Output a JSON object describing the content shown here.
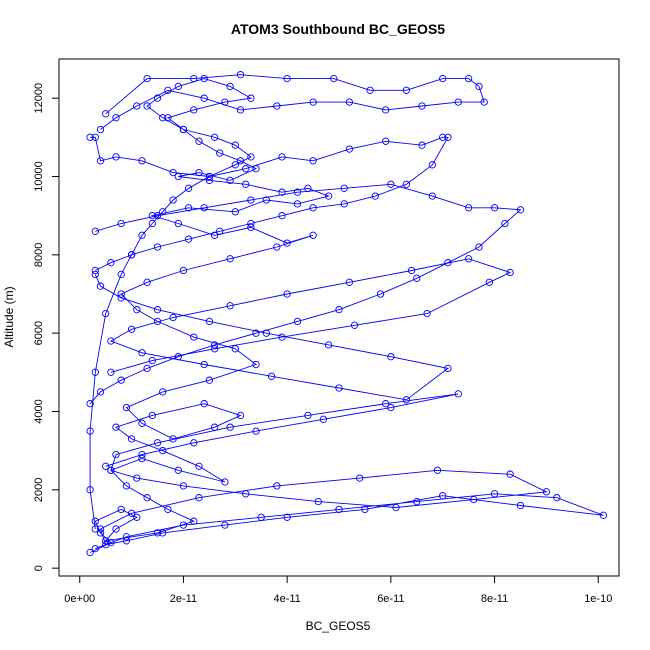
{
  "chart_data": {
    "type": "line",
    "title": "ATOM3 Southbound BC_GEOS5",
    "xlabel": "BC_GEOS5",
    "ylabel": "Altitude (m)",
    "xlim": [
      -4e-12,
      1.04e-10
    ],
    "ylim": [
      -200,
      13000
    ],
    "xticks": [
      0,
      2e-11,
      4e-11,
      6e-11,
      8e-11,
      1e-10
    ],
    "xtick_labels": [
      "0e+00",
      "2e-11",
      "4e-11",
      "6e-11",
      "8e-11",
      "1e-10"
    ],
    "yticks": [
      0,
      2000,
      4000,
      6000,
      8000,
      10000,
      12000
    ],
    "ytick_labels": [
      "0",
      "2000",
      "4000",
      "6000",
      "8000",
      "10000",
      "12000"
    ],
    "marker": "open-circle",
    "color": "#0000ff",
    "grid": false,
    "series": [
      {
        "x": [
          2e-12,
          6e-12,
          4e-12,
          3e-12,
          8e-12,
          1.1e-11,
          7e-12,
          5e-12,
          1.5e-11,
          2.2e-11,
          1.7e-11,
          1.3e-11,
          9e-12,
          6e-12,
          1.2e-11,
          1.9e-11,
          2.8e-11,
          2.3e-11,
          1.6e-11,
          1e-11,
          7e-12,
          1.4e-11,
          2.4e-11,
          3.1e-11,
          2.6e-11,
          1.8e-11,
          1.2e-11,
          9e-12,
          1.6e-11,
          2.5e-11,
          3.4e-11,
          3e-11,
          2.2e-11,
          1.5e-11,
          1.1e-11,
          8e-12,
          1.3e-11,
          2e-11,
          2.9e-11,
          3.8e-11,
          4.5e-11,
          4e-11,
          3.3e-11,
          2.6e-11,
          1.9e-11,
          1.4e-11,
          2.1e-11,
          3e-11,
          3.6e-11,
          4.2e-11,
          4.8e-11,
          4.4e-11,
          3.9e-11,
          3.2e-11,
          2.5e-11,
          1.9e-11,
          2.3e-11,
          2.9e-11,
          3.4e-11,
          3.1e-11,
          2.7e-11,
          2.3e-11,
          2e-11,
          1.7e-11,
          2.2e-11,
          2.8e-11,
          3.3e-11,
          2.9e-11,
          2.4e-11,
          1.9e-11,
          1.5e-11,
          1.3e-11,
          1.6e-11,
          2e-11,
          2.6e-11,
          3e-11,
          3.3e-11,
          3e-11,
          2.5e-11,
          2.1e-11,
          1.8e-11,
          1.6e-11,
          1.4e-11,
          1.2e-11,
          1e-11,
          8e-12,
          5e-12,
          3e-12,
          2e-12,
          2e-12,
          3e-12
        ],
        "y": [
          400,
          650,
          900,
          1200,
          1500,
          1300,
          1000,
          700,
          900,
          1200,
          1500,
          1800,
          2100,
          2500,
          2800,
          2500,
          2200,
          2600,
          3000,
          3300,
          3600,
          3900,
          4200,
          3900,
          3600,
          3300,
          3700,
          4100,
          4500,
          4800,
          5200,
          5600,
          5900,
          6300,
          6600,
          7000,
          7300,
          7600,
          7900,
          8200,
          8500,
          8300,
          8700,
          8500,
          8800,
          9000,
          9200,
          9100,
          9400,
          9300,
          9500,
          9700,
          9600,
          9800,
          9900,
          10000,
          10100,
          9900,
          10200,
          10400,
          10600,
          10900,
          11200,
          11500,
          11700,
          11900,
          12000,
          12300,
          12500,
          12300,
          12000,
          11800,
          11500,
          11200,
          11000,
          10800,
          10500,
          10300,
          10000,
          9700,
          9400,
          9100,
          8800,
          8500,
          8000,
          7500,
          6500,
          5000,
          3500,
          2000,
          1000
        ]
      },
      {
        "x": [
          3e-12,
          9e-12,
          2e-11,
          3.5e-11,
          5e-11,
          6.5e-11,
          8e-11,
          9.2e-11,
          1.01e-10,
          8.5e-11,
          7e-11,
          5.5e-11,
          4e-11,
          2.8e-11,
          1.6e-11,
          9e-12,
          5e-12,
          4e-12,
          1e-11,
          2.3e-11,
          3.8e-11,
          5.4e-11,
          6.9e-11,
          8.3e-11,
          9e-11,
          7.6e-11,
          6.1e-11,
          4.6e-11,
          3.2e-11,
          2e-11,
          1.1e-11,
          6e-12,
          7e-12,
          1.5e-11,
          2.9e-11,
          4.4e-11,
          5.9e-11,
          7.3e-11,
          6e-11,
          4.7e-11,
          3.4e-11,
          2.2e-11,
          1.2e-11,
          5e-12
        ],
        "y": [
          500,
          800,
          1100,
          1300,
          1500,
          1700,
          1900,
          1800,
          1350,
          1600,
          1850,
          1500,
          1300,
          1100,
          900,
          700,
          600,
          1000,
          1400,
          1800,
          2100,
          2300,
          2500,
          2400,
          1950,
          1750,
          1550,
          1700,
          1900,
          2100,
          2300,
          2500,
          2900,
          3200,
          3600,
          3900,
          4200,
          4450,
          4100,
          3800,
          3500,
          3200,
          2900,
          2600
        ]
      },
      {
        "x": [
          6e-12,
          1.4e-11,
          2.6e-11,
          3.9e-11,
          5.3e-11,
          6.7e-11,
          7.9e-11,
          8.3e-11,
          7.5e-11,
          6.4e-11,
          5.2e-11,
          4e-11,
          2.9e-11,
          1.8e-11,
          1e-11,
          6e-12,
          1.2e-11,
          2.4e-11,
          3.7e-11,
          5e-11,
          6.3e-11,
          7.1e-11,
          6e-11,
          4.8e-11,
          3.6e-11,
          2.5e-11,
          1.5e-11,
          8e-12,
          4e-12,
          3e-12
        ],
        "y": [
          5000,
          5300,
          5600,
          5900,
          6200,
          6500,
          7300,
          7550,
          7900,
          7600,
          7300,
          7000,
          6700,
          6400,
          6100,
          5800,
          5500,
          5200,
          4900,
          4600,
          4300,
          5100,
          5400,
          5700,
          6000,
          6300,
          6600,
          6900,
          7200,
          7500
        ]
      },
      {
        "x": [
          3e-12,
          8e-12,
          1.5e-11,
          2.4e-11,
          3.3e-11,
          4.2e-11,
          5.1e-11,
          6e-11,
          6.8e-11,
          7.5e-11,
          8e-11,
          8.5e-11,
          8.2e-11,
          7.7e-11,
          7.1e-11,
          6.5e-11,
          5.8e-11,
          5e-11,
          4.2e-11,
          3.4e-11,
          2.6e-11,
          1.9e-11,
          1.3e-11,
          8e-12,
          4e-12,
          2e-12
        ],
        "y": [
          8600,
          8800,
          9000,
          9200,
          9400,
          9600,
          9700,
          9800,
          9500,
          9200,
          9200,
          9150,
          8800,
          8200,
          7800,
          7400,
          7000,
          6600,
          6300,
          6000,
          5700,
          5400,
          5100,
          4800,
          4500,
          4200
        ]
      },
      {
        "x": [
          2e-12,
          3e-12,
          4e-12,
          7e-12,
          1.2e-11,
          1.8e-11,
          2.5e-11,
          3.2e-11,
          3.9e-11,
          4.5e-11,
          5.2e-11,
          5.9e-11,
          6.6e-11,
          7e-11,
          7.1e-11,
          6.8e-11,
          6.3e-11,
          5.7e-11,
          5.1e-11,
          4.5e-11,
          3.9e-11,
          3.3e-11,
          2.7e-11,
          2.1e-11,
          1.5e-11,
          1e-11,
          6e-12,
          3e-12
        ],
        "y": [
          11000,
          11000,
          10400,
          10500,
          10400,
          10100,
          10000,
          10200,
          10500,
          10400,
          10700,
          10900,
          10800,
          11000,
          11000,
          10300,
          9800,
          9500,
          9300,
          9200,
          9000,
          8800,
          8600,
          8400,
          8200,
          8000,
          7800,
          7600
        ]
      },
      {
        "x": [
          5e-12,
          1.3e-11,
          2.2e-11,
          3.1e-11,
          4e-11,
          4.9e-11,
          5.6e-11,
          6.3e-11,
          7e-11,
          7.5e-11,
          7.7e-11,
          7.8e-11,
          7.3e-11,
          6.6e-11,
          5.9e-11,
          5.2e-11,
          4.5e-11,
          3.8e-11,
          3.1e-11,
          2.4e-11,
          1.7e-11,
          1.1e-11,
          7e-12,
          4e-12
        ],
        "y": [
          11600,
          12500,
          12500,
          12600,
          12500,
          12500,
          12200,
          12200,
          12500,
          12500,
          12300,
          11900,
          11900,
          11800,
          11700,
          11900,
          11900,
          11800,
          11700,
          12000,
          12200,
          11800,
          11500,
          11200
        ]
      }
    ]
  }
}
